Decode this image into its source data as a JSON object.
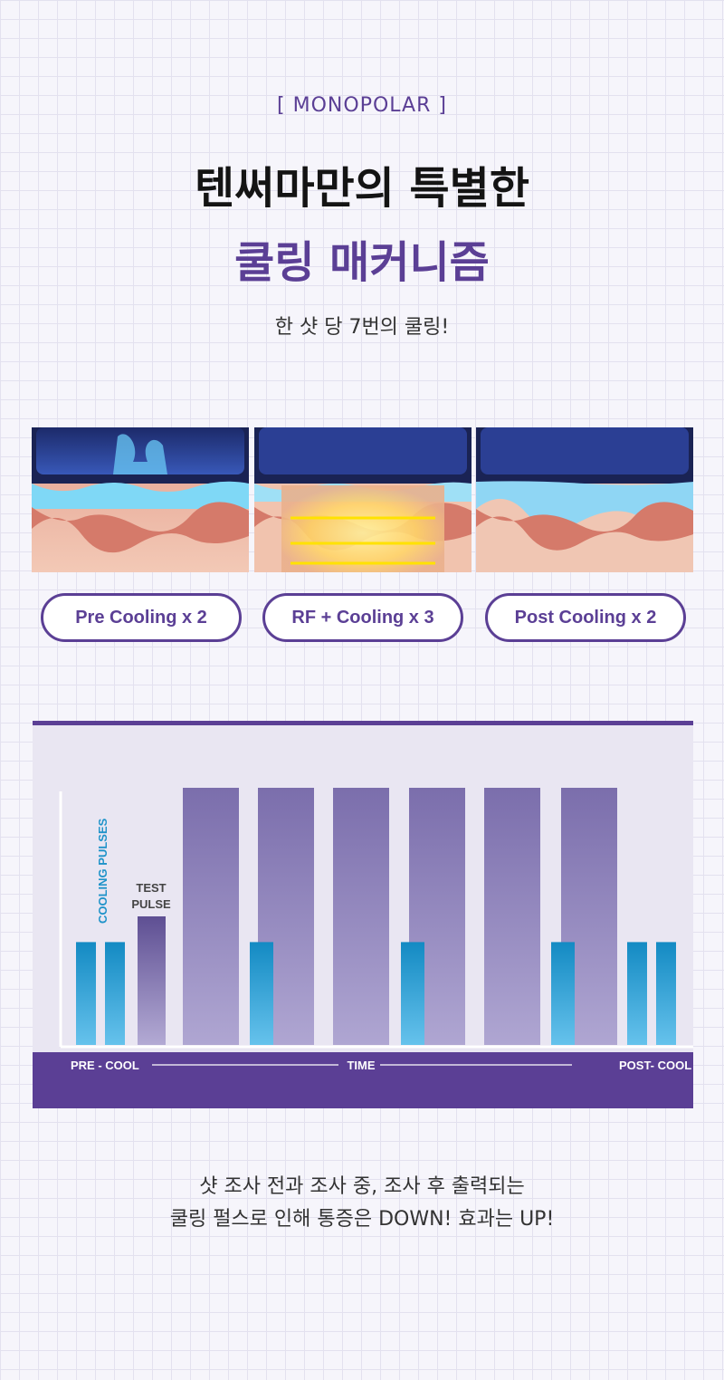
{
  "header": {
    "tag": "[ MONOPOLAR ]",
    "title_line1": "텐써마만의 특별한",
    "title_line2": "쿨링 매커니즘",
    "subtitle": "한 샷 당 7번의 쿨링!"
  },
  "steps": [
    {
      "label": "Pre Cooling x 2"
    },
    {
      "label": "RF + Cooling x 3"
    },
    {
      "label": "Post Cooling x 2"
    }
  ],
  "chart_data": {
    "type": "bar",
    "labels": {
      "cooling_pulses": "COOLING PULSES",
      "test_pulse_line1": "TEST",
      "test_pulse_line2": "PULSE",
      "pre_cool": "PRE - COOL",
      "time": "TIME",
      "post_cool": "POST- COOL"
    },
    "sequence": [
      {
        "kind": "cooling",
        "level": 0.4
      },
      {
        "kind": "cooling",
        "level": 0.4
      },
      {
        "kind": "test",
        "level": 0.5
      },
      {
        "kind": "rf",
        "level": 1.0
      },
      {
        "kind": "rf",
        "level": 1.0,
        "cooling_overlay": 0.4
      },
      {
        "kind": "rf",
        "level": 1.0
      },
      {
        "kind": "rf",
        "level": 1.0,
        "cooling_overlay": 0.4
      },
      {
        "kind": "rf",
        "level": 1.0
      },
      {
        "kind": "rf",
        "level": 1.0,
        "cooling_overlay": 0.4
      },
      {
        "kind": "cooling",
        "level": 0.4
      },
      {
        "kind": "cooling",
        "level": 0.4
      }
    ],
    "colors": {
      "rf": "#8f82bf",
      "cooling": "#1f93c9",
      "accent": "#5b3f95"
    }
  },
  "caption": {
    "line1": "샷 조사 전과 조사 중, 조사 후 출력되는",
    "line2": "쿨링 펄스로 인해 통증은 DOWN! 효과는 UP!"
  }
}
